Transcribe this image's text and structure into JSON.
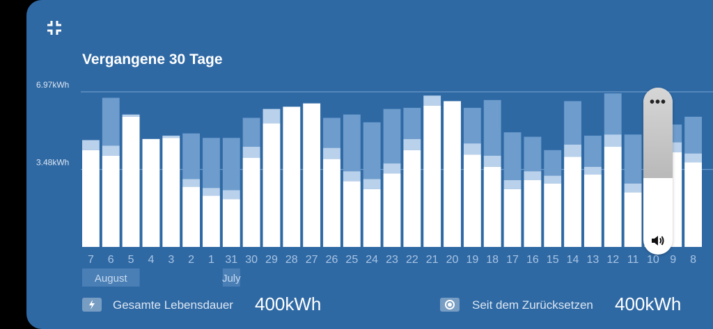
{
  "title": "Vergangene 30 Tage",
  "icons": {
    "collapse": "collapse-icon",
    "lifetime": "bolt-icon",
    "reset": "target-icon",
    "more": "more-icon",
    "volume": "volume-icon"
  },
  "colors": {
    "card": "#2f69a4",
    "bar_main": "#ffffff",
    "bar_light": "#b9d1eb",
    "bar_back": "#6d9ccd",
    "grid": "#7ba5d2",
    "tick": "#a9c5e4",
    "month_box": "#4a7fb6"
  },
  "stats": {
    "lifetime_label": "Gesamte Lebensdauer",
    "lifetime_value": "400kWh",
    "reset_label": "Seit dem Zurücksetzen",
    "reset_value": "400kWh"
  },
  "overlay": {
    "more_label": "•••"
  },
  "chart_data": {
    "type": "bar",
    "unit": "kWh",
    "ylim": [
      0,
      6.97
    ],
    "ytick_labels": [
      "6.97kWh",
      "3.48kWh"
    ],
    "ytick_values": [
      6.97,
      3.48
    ],
    "grid": true,
    "months": [
      {
        "label": "August",
        "start": 0,
        "end": 2
      },
      {
        "label": "July",
        "start": 7,
        "end": 7
      }
    ],
    "categories": [
      "7",
      "6",
      "5",
      "4",
      "3",
      "2",
      "1",
      "31",
      "30",
      "29",
      "28",
      "27",
      "26",
      "25",
      "24",
      "23",
      "22",
      "21",
      "20",
      "19",
      "18",
      "17",
      "16",
      "15",
      "14",
      "13",
      "12",
      "11",
      "10",
      "9",
      "8"
    ],
    "series": [
      {
        "values": [
          4.35,
          4.1,
          5.85,
          4.85,
          4.9,
          2.7,
          2.3,
          2.15,
          4.0,
          5.55,
          6.3,
          6.45,
          3.95,
          2.95,
          2.6,
          3.3,
          4.35,
          6.35,
          6.55,
          4.15,
          3.6,
          2.6,
          3.0,
          2.85,
          4.05,
          3.25,
          4.5,
          2.45,
          2.6,
          4.25,
          3.8
        ]
      },
      {
        "values": [
          0.45,
          0.45,
          0.1,
          0,
          0.1,
          0.35,
          0.35,
          0.4,
          0.5,
          0.65,
          0,
          0,
          0.5,
          0.45,
          0.45,
          0.45,
          0.5,
          0.45,
          0,
          0.5,
          0.5,
          0.4,
          0.4,
          0.35,
          0.55,
          0.35,
          0.55,
          0.4,
          0.4,
          0.45,
          0.4
        ]
      },
      {
        "values": [
          0,
          2.15,
          0,
          0,
          0,
          2.05,
          2.25,
          2.35,
          1.3,
          0,
          0,
          0,
          1.35,
          2.55,
          2.55,
          2.45,
          1.4,
          0,
          0,
          1.6,
          2.5,
          2.15,
          1.55,
          1.15,
          1.95,
          1.4,
          1.85,
          2.2,
          2.1,
          0.8,
          1.65
        ]
      }
    ]
  }
}
